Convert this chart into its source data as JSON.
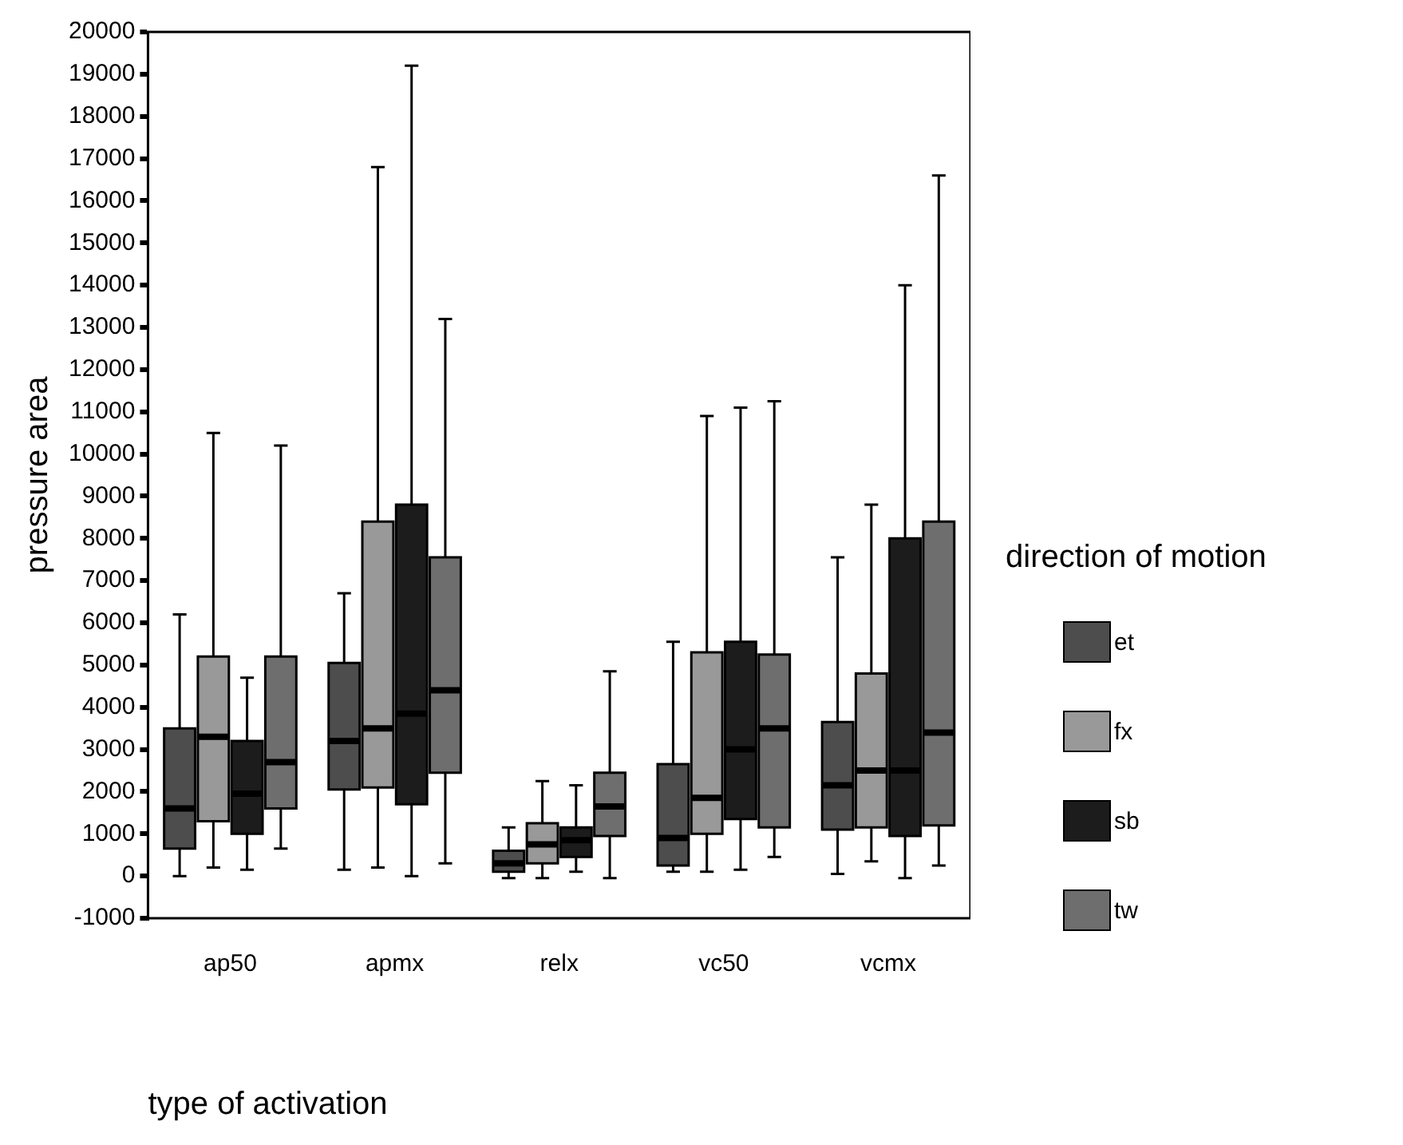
{
  "chart_data": {
    "type": "box",
    "xlabel": "type of activation",
    "ylabel": "pressure area",
    "legend_title": "direction of motion",
    "legend": "right",
    "grid": false,
    "categories": [
      "ap50",
      "apmx",
      "relx",
      "vc50",
      "vcmx"
    ],
    "ylim": [
      -1000,
      20000
    ],
    "yticks": [
      -1000,
      0,
      1000,
      2000,
      3000,
      4000,
      5000,
      6000,
      7000,
      8000,
      9000,
      10000,
      11000,
      12000,
      13000,
      14000,
      15000,
      16000,
      17000,
      18000,
      19000,
      20000
    ],
    "series": [
      {
        "name": "et",
        "color": "#4d4d4d",
        "boxes": [
          {
            "low": 0,
            "q1": 650,
            "median": 1600,
            "q3": 3500,
            "high": 6200
          },
          {
            "low": 150,
            "q1": 2050,
            "median": 3200,
            "q3": 5050,
            "high": 6700
          },
          {
            "low": -50,
            "q1": 100,
            "median": 300,
            "q3": 600,
            "high": 1150
          },
          {
            "low": 100,
            "q1": 250,
            "median": 900,
            "q3": 2650,
            "high": 5550
          },
          {
            "low": 50,
            "q1": 1100,
            "median": 2150,
            "q3": 3650,
            "high": 7550
          }
        ]
      },
      {
        "name": "fx",
        "color": "#999999",
        "boxes": [
          {
            "low": 200,
            "q1": 1300,
            "median": 3300,
            "q3": 5200,
            "high": 10500
          },
          {
            "low": 200,
            "q1": 2100,
            "median": 3500,
            "q3": 8400,
            "high": 16800
          },
          {
            "low": -50,
            "q1": 300,
            "median": 750,
            "q3": 1250,
            "high": 2250
          },
          {
            "low": 100,
            "q1": 1000,
            "median": 1850,
            "q3": 5300,
            "high": 10900
          },
          {
            "low": 350,
            "q1": 1150,
            "median": 2500,
            "q3": 4800,
            "high": 8800
          }
        ]
      },
      {
        "name": "sb",
        "color": "#1c1c1c",
        "boxes": [
          {
            "low": 150,
            "q1": 1000,
            "median": 1950,
            "q3": 3200,
            "high": 4700
          },
          {
            "low": 0,
            "q1": 1700,
            "median": 3850,
            "q3": 8800,
            "high": 19200
          },
          {
            "low": 100,
            "q1": 450,
            "median": 850,
            "q3": 1150,
            "high": 2150
          },
          {
            "low": 150,
            "q1": 1350,
            "median": 3000,
            "q3": 5550,
            "high": 11100
          },
          {
            "low": -50,
            "q1": 950,
            "median": 2500,
            "q3": 8000,
            "high": 14000
          }
        ]
      },
      {
        "name": "tw",
        "color": "#6e6e6e",
        "boxes": [
          {
            "low": 650,
            "q1": 1600,
            "median": 2700,
            "q3": 5200,
            "high": 10200
          },
          {
            "low": 300,
            "q1": 2450,
            "median": 4400,
            "q3": 7550,
            "high": 13200
          },
          {
            "low": -50,
            "q1": 950,
            "median": 1650,
            "q3": 2450,
            "high": 4850
          },
          {
            "low": 450,
            "q1": 1150,
            "median": 3500,
            "q3": 5250,
            "high": 11250
          },
          {
            "low": 250,
            "q1": 1200,
            "median": 3400,
            "q3": 8400,
            "high": 16600
          }
        ]
      }
    ]
  }
}
